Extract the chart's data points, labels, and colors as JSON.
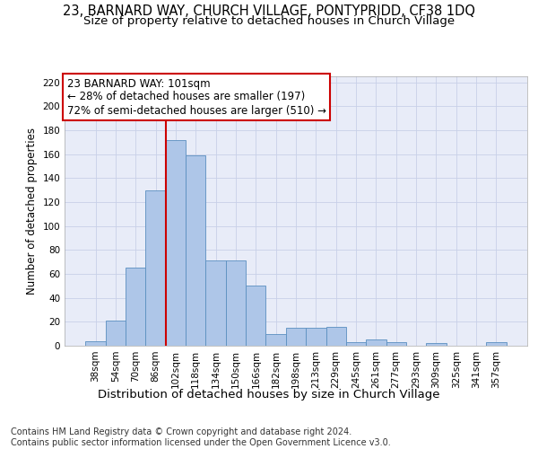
{
  "title": "23, BARNARD WAY, CHURCH VILLAGE, PONTYPRIDD, CF38 1DQ",
  "subtitle": "Size of property relative to detached houses in Church Village",
  "xlabel": "Distribution of detached houses by size in Church Village",
  "ylabel": "Number of detached properties",
  "footer_line1": "Contains HM Land Registry data © Crown copyright and database right 2024.",
  "footer_line2": "Contains public sector information licensed under the Open Government Licence v3.0.",
  "bar_labels": [
    "38sqm",
    "54sqm",
    "70sqm",
    "86sqm",
    "102sqm",
    "118sqm",
    "134sqm",
    "150sqm",
    "166sqm",
    "182sqm",
    "198sqm",
    "213sqm",
    "229sqm",
    "245sqm",
    "261sqm",
    "277sqm",
    "293sqm",
    "309sqm",
    "325sqm",
    "341sqm",
    "357sqm"
  ],
  "bar_values": [
    4,
    21,
    65,
    130,
    172,
    159,
    71,
    71,
    50,
    10,
    15,
    15,
    16,
    3,
    5,
    3,
    0,
    2,
    0,
    0,
    3
  ],
  "bar_color": "#aec6e8",
  "bar_edge_color": "#5a8fc0",
  "grid_color": "#c8d0e8",
  "bg_color": "#e8ecf8",
  "annotation_line1": "23 BARNARD WAY: 101sqm",
  "annotation_line2": "← 28% of detached houses are smaller (197)",
  "annotation_line3": "72% of semi-detached houses are larger (510) →",
  "vline_index": 4,
  "vline_color": "#cc0000",
  "annotation_box_facecolor": "#ffffff",
  "annotation_box_edgecolor": "#cc0000",
  "ylim": [
    0,
    225
  ],
  "yticks": [
    0,
    20,
    40,
    60,
    80,
    100,
    120,
    140,
    160,
    180,
    200,
    220
  ],
  "title_fontsize": 10.5,
  "subtitle_fontsize": 9.5,
  "xlabel_fontsize": 9.5,
  "ylabel_fontsize": 8.5,
  "tick_fontsize": 7.5,
  "annotation_fontsize": 8.5,
  "footer_fontsize": 7.0
}
